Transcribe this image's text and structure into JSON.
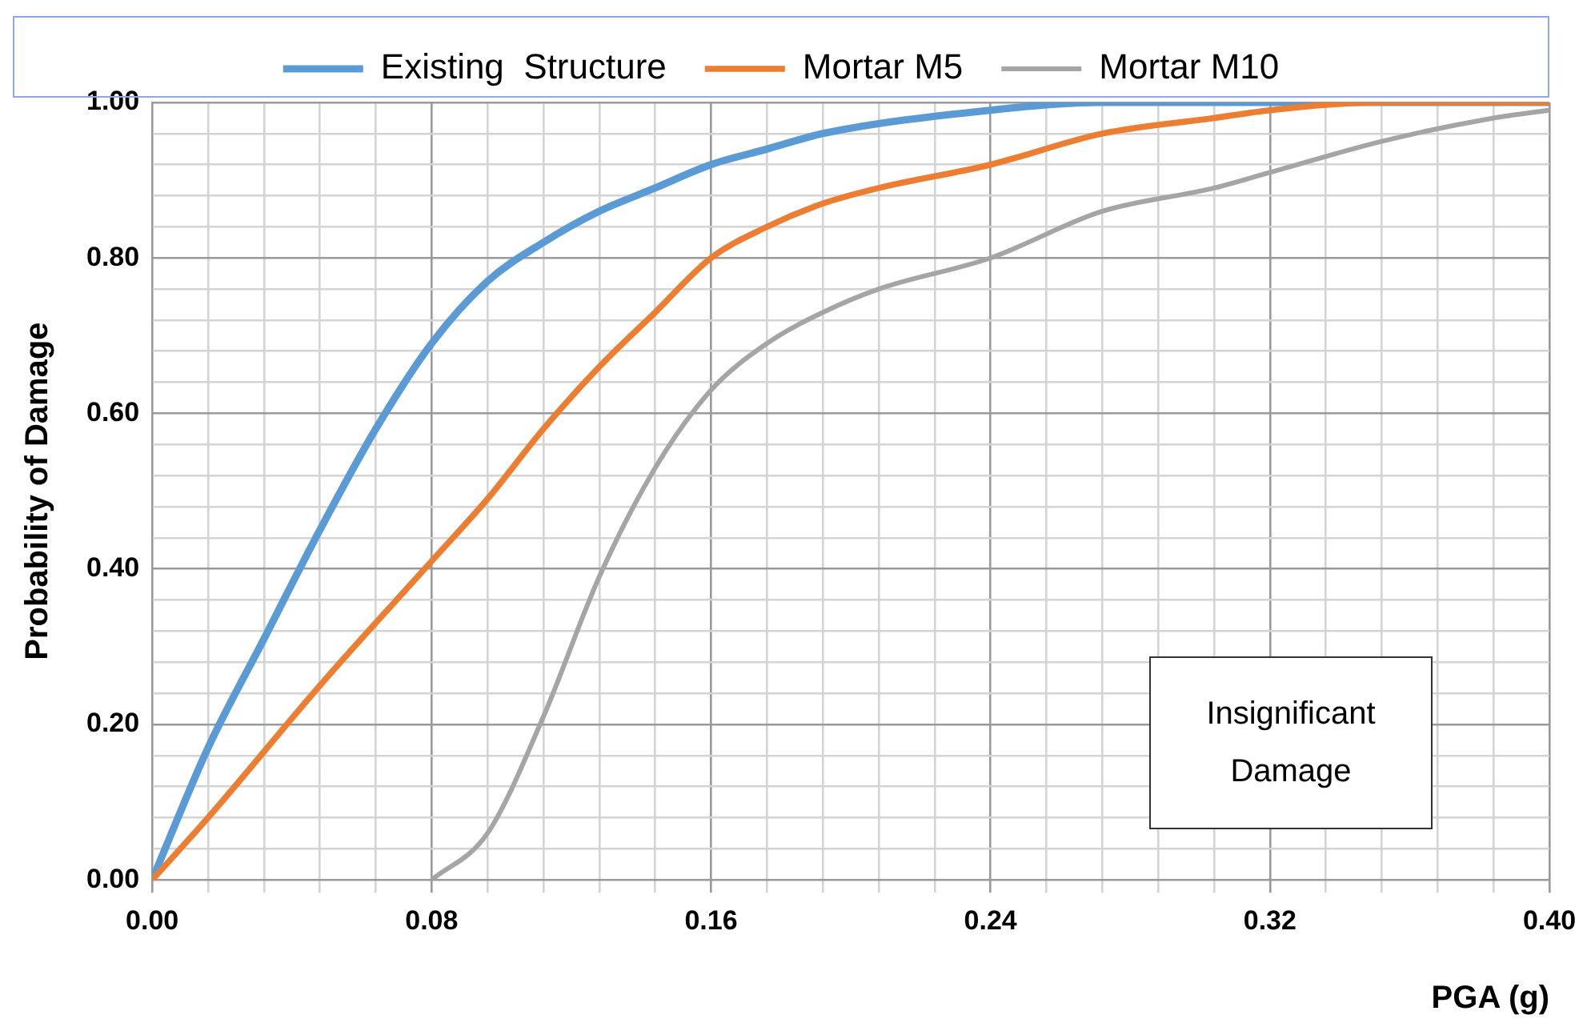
{
  "chart_data": {
    "type": "line",
    "xlabel": "PGA (g)",
    "ylabel": "Probability of Damage",
    "legend": "top",
    "grid": true,
    "marker": "none",
    "line_style": "solid",
    "xlim": [
      0,
      0.4
    ],
    "ylim": [
      0,
      1
    ],
    "xticks": [
      {
        "value": 0,
        "label": "0.00"
      },
      {
        "value": 0.016,
        "label": null
      },
      {
        "value": 0.032,
        "label": null
      },
      {
        "value": 0.048,
        "label": null
      },
      {
        "value": 0.064,
        "label": null
      },
      {
        "value": 0.08,
        "label": "0.08"
      },
      {
        "value": 0.096,
        "label": null
      },
      {
        "value": 0.112,
        "label": null
      },
      {
        "value": 0.128,
        "label": null
      },
      {
        "value": 0.144,
        "label": null
      },
      {
        "value": 0.16,
        "label": "0.16"
      },
      {
        "value": 0.176,
        "label": null
      },
      {
        "value": 0.192,
        "label": null
      },
      {
        "value": 0.208,
        "label": null
      },
      {
        "value": 0.224,
        "label": null
      },
      {
        "value": 0.24,
        "label": "0.24"
      },
      {
        "value": 0.256,
        "label": null
      },
      {
        "value": 0.272,
        "label": null
      },
      {
        "value": 0.288,
        "label": null
      },
      {
        "value": 0.304,
        "label": null
      },
      {
        "value": 0.32,
        "label": "0.32"
      },
      {
        "value": 0.336,
        "label": null
      },
      {
        "value": 0.352,
        "label": null
      },
      {
        "value": 0.368,
        "label": null
      },
      {
        "value": 0.384,
        "label": null
      },
      {
        "value": 0.4,
        "label": "0.40"
      }
    ],
    "yticks": [
      {
        "value": 0,
        "label": "0.00"
      },
      {
        "value": 0.04,
        "label": null
      },
      {
        "value": 0.08,
        "label": null
      },
      {
        "value": 0.12,
        "label": null
      },
      {
        "value": 0.16,
        "label": null
      },
      {
        "value": 0.2,
        "label": "0.20"
      },
      {
        "value": 0.24,
        "label": null
      },
      {
        "value": 0.28,
        "label": null
      },
      {
        "value": 0.32,
        "label": null
      },
      {
        "value": 0.36,
        "label": null
      },
      {
        "value": 0.4,
        "label": "0.40"
      },
      {
        "value": 0.44,
        "label": null
      },
      {
        "value": 0.48,
        "label": null
      },
      {
        "value": 0.52,
        "label": null
      },
      {
        "value": 0.56,
        "label": null
      },
      {
        "value": 0.6,
        "label": "0.60"
      },
      {
        "value": 0.64,
        "label": null
      },
      {
        "value": 0.68,
        "label": null
      },
      {
        "value": 0.72,
        "label": null
      },
      {
        "value": 0.76,
        "label": null
      },
      {
        "value": 0.8,
        "label": "0.80"
      },
      {
        "value": 0.84,
        "label": null
      },
      {
        "value": 0.88,
        "label": null
      },
      {
        "value": 0.92,
        "label": null
      },
      {
        "value": 0.96,
        "label": null
      },
      {
        "value": 1,
        "label": "1.00"
      }
    ],
    "series": [
      {
        "name": "Existing  Structure",
        "color": "#5b9bd5",
        "x": [
          0,
          0.016,
          0.032,
          0.048,
          0.064,
          0.08,
          0.096,
          0.112,
          0.128,
          0.144,
          0.16,
          0.176,
          0.192,
          0.24,
          0.272,
          0.32,
          0.4
        ],
        "values": [
          0,
          0.17,
          0.31,
          0.45,
          0.58,
          0.69,
          0.77,
          0.82,
          0.86,
          0.89,
          0.92,
          0.94,
          0.96,
          0.99,
          1,
          1,
          1
        ]
      },
      {
        "name": "Mortar M5",
        "color": "#ed7d31",
        "x": [
          0,
          0.016,
          0.048,
          0.08,
          0.096,
          0.112,
          0.128,
          0.144,
          0.16,
          0.176,
          0.192,
          0.208,
          0.24,
          0.272,
          0.304,
          0.32,
          0.352,
          0.4
        ],
        "values": [
          0,
          0.08,
          0.25,
          0.41,
          0.49,
          0.58,
          0.66,
          0.73,
          0.8,
          0.84,
          0.87,
          0.89,
          0.92,
          0.96,
          0.98,
          0.99,
          1,
          1
        ]
      },
      {
        "name": "Mortar M10",
        "color": "#a5a5a5",
        "x": [
          0.08,
          0.096,
          0.112,
          0.128,
          0.144,
          0.16,
          0.176,
          0.192,
          0.208,
          0.24,
          0.272,
          0.304,
          0.32,
          0.352,
          0.384,
          0.4
        ],
        "values": [
          0,
          0.06,
          0.21,
          0.39,
          0.53,
          0.63,
          0.69,
          0.73,
          0.76,
          0.8,
          0.86,
          0.89,
          0.91,
          0.95,
          0.98,
          0.99
        ]
      }
    ],
    "annotations": [
      "Insignificant Damage"
    ]
  }
}
